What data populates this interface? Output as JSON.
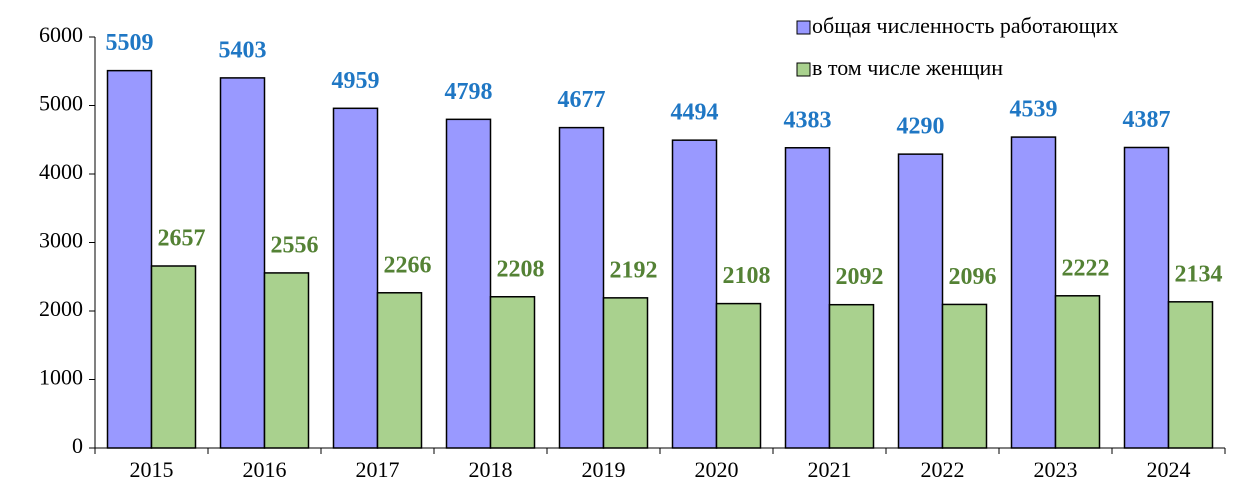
{
  "chart_data": {
    "type": "bar",
    "categories": [
      "2015",
      "2016",
      "2017",
      "2018",
      "2019",
      "2020",
      "2021",
      "2022",
      "2023",
      "2024"
    ],
    "series": [
      {
        "name": "общая численность работающих",
        "color": "#9999ff",
        "label_color": "#1f77c4",
        "values": [
          5509,
          5403,
          4959,
          4798,
          4677,
          4494,
          4383,
          4290,
          4539,
          4387
        ]
      },
      {
        "name": "в том числе женщин",
        "color": "#a9d18e",
        "label_color": "#548235",
        "values": [
          2657,
          2556,
          2266,
          2208,
          2192,
          2108,
          2092,
          2096,
          2222,
          2134
        ]
      }
    ],
    "ylim": [
      0,
      6000
    ],
    "yticks": [
      0,
      1000,
      2000,
      3000,
      4000,
      5000,
      6000
    ],
    "grid": false,
    "legend": "upper right"
  }
}
